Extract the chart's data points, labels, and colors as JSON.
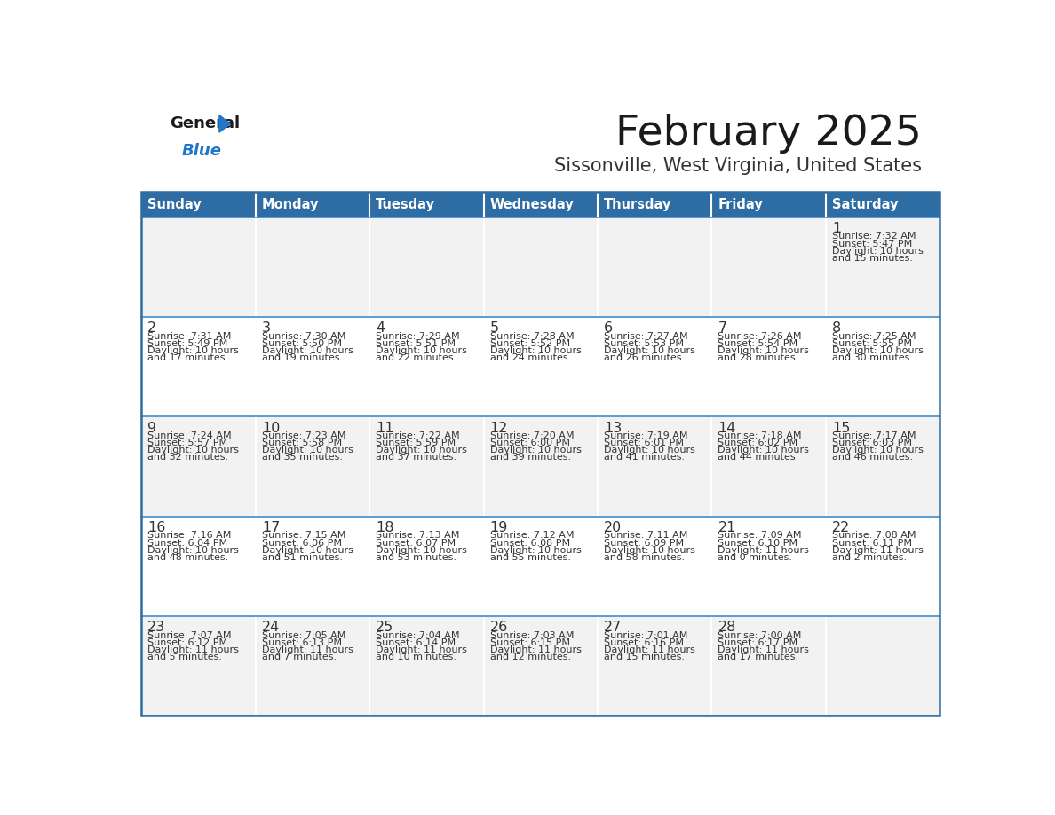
{
  "title": "February 2025",
  "subtitle": "Sissonville, West Virginia, United States",
  "header_color": "#2d6da3",
  "header_text_color": "#ffffff",
  "cell_bg_light": "#f2f2f2",
  "cell_bg_white": "#ffffff",
  "border_color": "#2d6da3",
  "cell_divider_color": "#ffffff",
  "row_border_color": "#5b9bd5",
  "day_headers": [
    "Sunday",
    "Monday",
    "Tuesday",
    "Wednesday",
    "Thursday",
    "Friday",
    "Saturday"
  ],
  "title_color": "#1a1a1a",
  "subtitle_color": "#333333",
  "number_color": "#333333",
  "info_color": "#333333",
  "logo_general_color": "#1a1a1a",
  "logo_blue_color": "#2176c7",
  "weeks": [
    [
      {
        "day": null,
        "sunrise": null,
        "sunset": null,
        "daylight": null
      },
      {
        "day": null,
        "sunrise": null,
        "sunset": null,
        "daylight": null
      },
      {
        "day": null,
        "sunrise": null,
        "sunset": null,
        "daylight": null
      },
      {
        "day": null,
        "sunrise": null,
        "sunset": null,
        "daylight": null
      },
      {
        "day": null,
        "sunrise": null,
        "sunset": null,
        "daylight": null
      },
      {
        "day": null,
        "sunrise": null,
        "sunset": null,
        "daylight": null
      },
      {
        "day": 1,
        "sunrise": "7:32 AM",
        "sunset": "5:47 PM",
        "daylight": "10 hours\nand 15 minutes."
      }
    ],
    [
      {
        "day": 2,
        "sunrise": "7:31 AM",
        "sunset": "5:49 PM",
        "daylight": "10 hours\nand 17 minutes."
      },
      {
        "day": 3,
        "sunrise": "7:30 AM",
        "sunset": "5:50 PM",
        "daylight": "10 hours\nand 19 minutes."
      },
      {
        "day": 4,
        "sunrise": "7:29 AM",
        "sunset": "5:51 PM",
        "daylight": "10 hours\nand 22 minutes."
      },
      {
        "day": 5,
        "sunrise": "7:28 AM",
        "sunset": "5:52 PM",
        "daylight": "10 hours\nand 24 minutes."
      },
      {
        "day": 6,
        "sunrise": "7:27 AM",
        "sunset": "5:53 PM",
        "daylight": "10 hours\nand 26 minutes."
      },
      {
        "day": 7,
        "sunrise": "7:26 AM",
        "sunset": "5:54 PM",
        "daylight": "10 hours\nand 28 minutes."
      },
      {
        "day": 8,
        "sunrise": "7:25 AM",
        "sunset": "5:55 PM",
        "daylight": "10 hours\nand 30 minutes."
      }
    ],
    [
      {
        "day": 9,
        "sunrise": "7:24 AM",
        "sunset": "5:57 PM",
        "daylight": "10 hours\nand 32 minutes."
      },
      {
        "day": 10,
        "sunrise": "7:23 AM",
        "sunset": "5:58 PM",
        "daylight": "10 hours\nand 35 minutes."
      },
      {
        "day": 11,
        "sunrise": "7:22 AM",
        "sunset": "5:59 PM",
        "daylight": "10 hours\nand 37 minutes."
      },
      {
        "day": 12,
        "sunrise": "7:20 AM",
        "sunset": "6:00 PM",
        "daylight": "10 hours\nand 39 minutes."
      },
      {
        "day": 13,
        "sunrise": "7:19 AM",
        "sunset": "6:01 PM",
        "daylight": "10 hours\nand 41 minutes."
      },
      {
        "day": 14,
        "sunrise": "7:18 AM",
        "sunset": "6:02 PM",
        "daylight": "10 hours\nand 44 minutes."
      },
      {
        "day": 15,
        "sunrise": "7:17 AM",
        "sunset": "6:03 PM",
        "daylight": "10 hours\nand 46 minutes."
      }
    ],
    [
      {
        "day": 16,
        "sunrise": "7:16 AM",
        "sunset": "6:04 PM",
        "daylight": "10 hours\nand 48 minutes."
      },
      {
        "day": 17,
        "sunrise": "7:15 AM",
        "sunset": "6:06 PM",
        "daylight": "10 hours\nand 51 minutes."
      },
      {
        "day": 18,
        "sunrise": "7:13 AM",
        "sunset": "6:07 PM",
        "daylight": "10 hours\nand 53 minutes."
      },
      {
        "day": 19,
        "sunrise": "7:12 AM",
        "sunset": "6:08 PM",
        "daylight": "10 hours\nand 55 minutes."
      },
      {
        "day": 20,
        "sunrise": "7:11 AM",
        "sunset": "6:09 PM",
        "daylight": "10 hours\nand 58 minutes."
      },
      {
        "day": 21,
        "sunrise": "7:09 AM",
        "sunset": "6:10 PM",
        "daylight": "11 hours\nand 0 minutes."
      },
      {
        "day": 22,
        "sunrise": "7:08 AM",
        "sunset": "6:11 PM",
        "daylight": "11 hours\nand 2 minutes."
      }
    ],
    [
      {
        "day": 23,
        "sunrise": "7:07 AM",
        "sunset": "6:12 PM",
        "daylight": "11 hours\nand 5 minutes."
      },
      {
        "day": 24,
        "sunrise": "7:05 AM",
        "sunset": "6:13 PM",
        "daylight": "11 hours\nand 7 minutes."
      },
      {
        "day": 25,
        "sunrise": "7:04 AM",
        "sunset": "6:14 PM",
        "daylight": "11 hours\nand 10 minutes."
      },
      {
        "day": 26,
        "sunrise": "7:03 AM",
        "sunset": "6:15 PM",
        "daylight": "11 hours\nand 12 minutes."
      },
      {
        "day": 27,
        "sunrise": "7:01 AM",
        "sunset": "6:16 PM",
        "daylight": "11 hours\nand 15 minutes."
      },
      {
        "day": 28,
        "sunrise": "7:00 AM",
        "sunset": "6:17 PM",
        "daylight": "11 hours\nand 17 minutes."
      },
      {
        "day": null,
        "sunrise": null,
        "sunset": null,
        "daylight": null
      }
    ]
  ]
}
